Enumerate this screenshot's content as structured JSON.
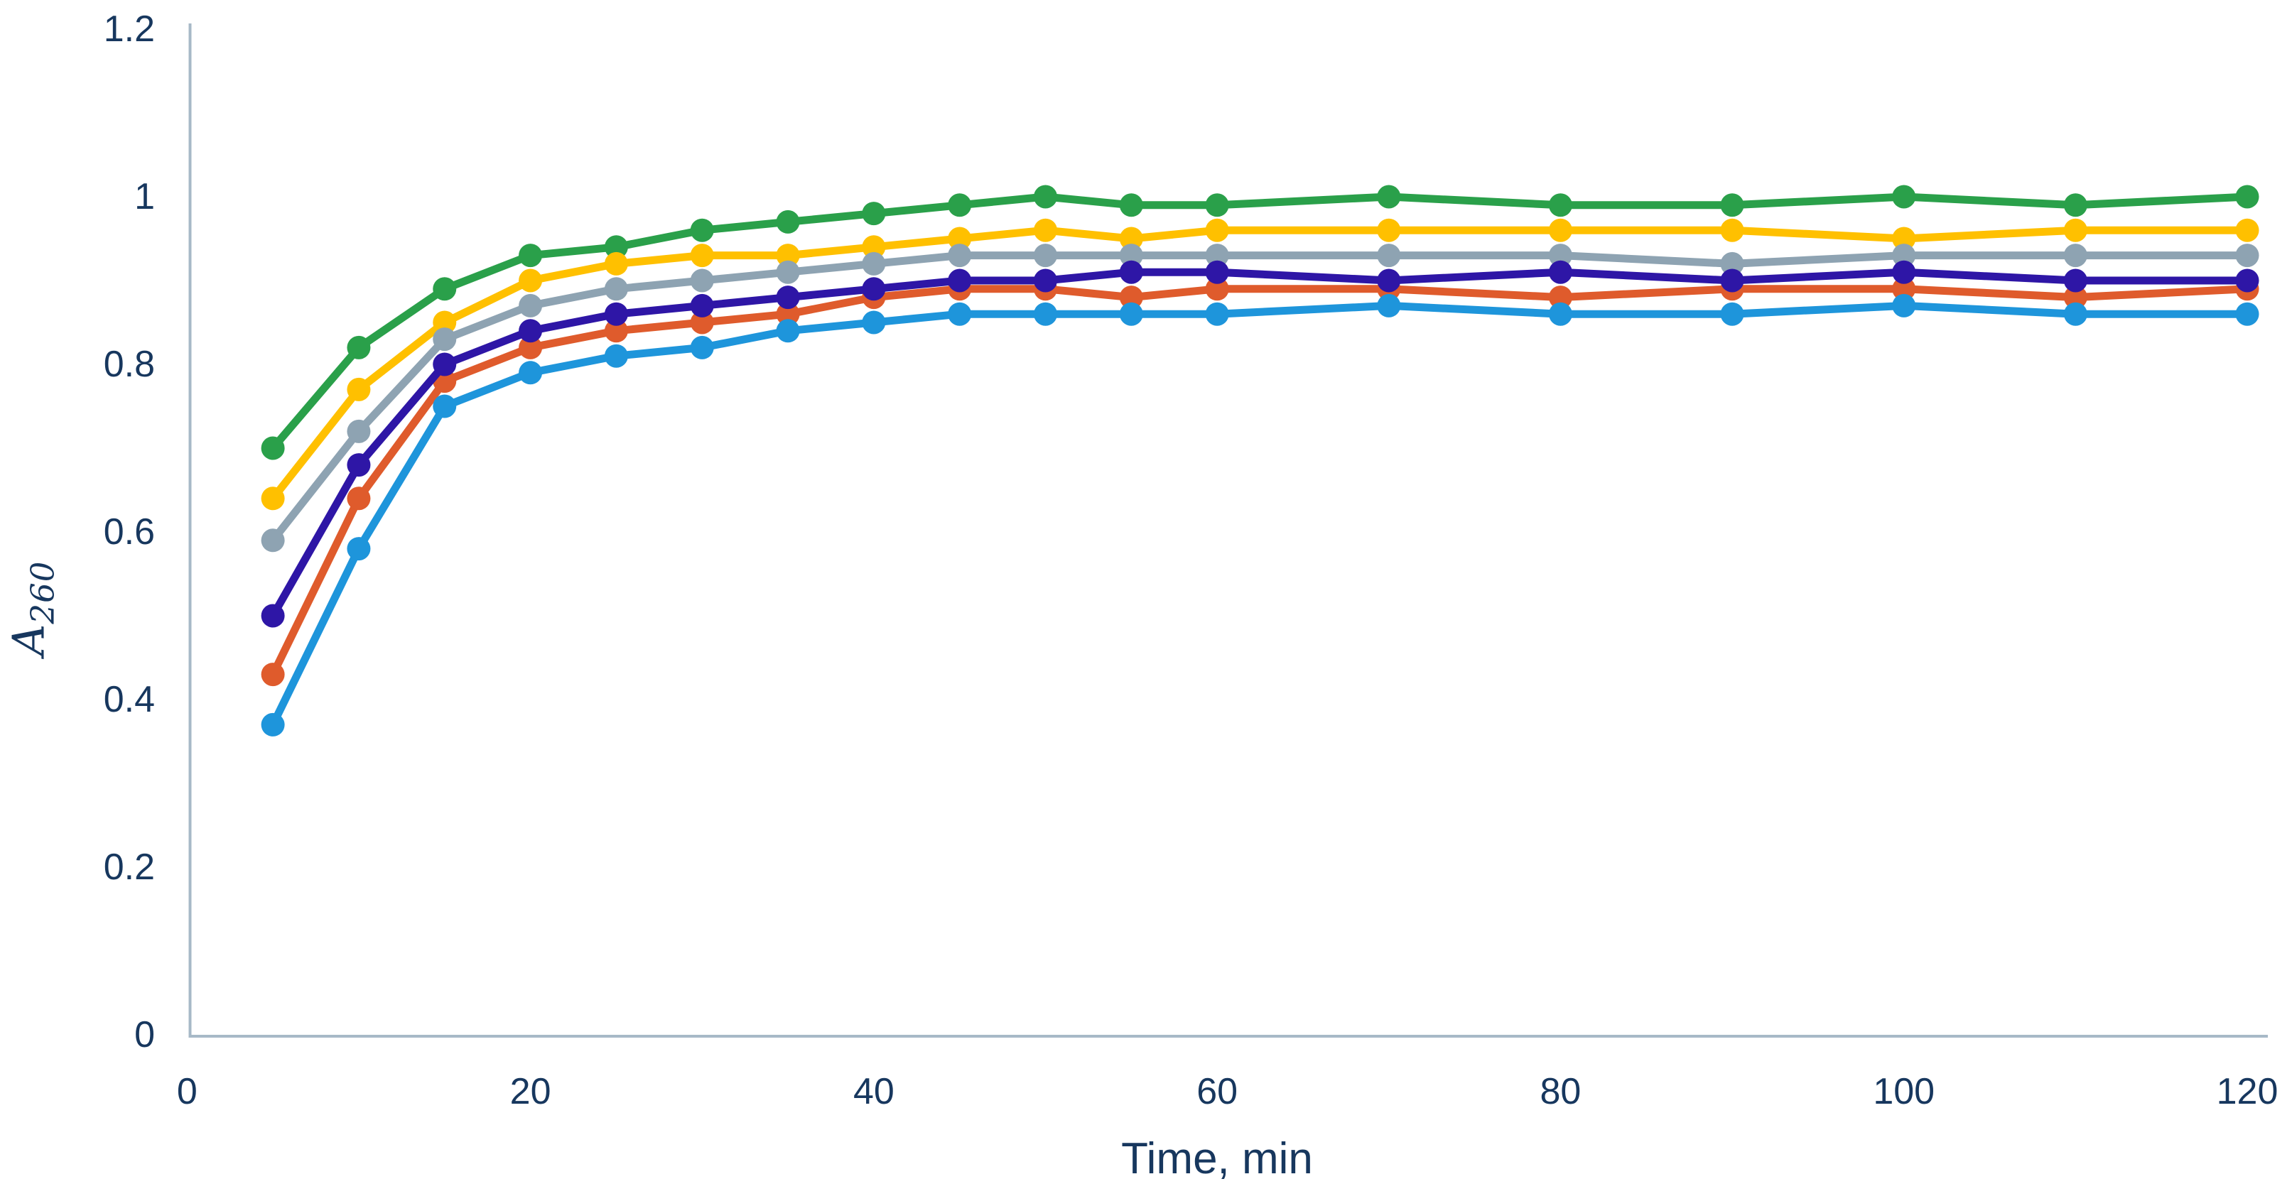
{
  "chart_data": {
    "type": "line",
    "title": "",
    "xlabel": "Time, min",
    "ylabel_base": "A",
    "ylabel_sub": "260",
    "x": [
      5,
      10,
      15,
      20,
      25,
      30,
      35,
      40,
      45,
      50,
      55,
      60,
      70,
      80,
      90,
      100,
      110,
      120
    ],
    "x_ticks": [
      "0",
      "20",
      "40",
      "60",
      "80",
      "100",
      "120"
    ],
    "x_tick_values": [
      0,
      20,
      40,
      60,
      80,
      100,
      120
    ],
    "y_ticks": [
      "0",
      "0.2",
      "0.4",
      "0.6",
      "0.8",
      "1",
      "1.2"
    ],
    "y_tick_values": [
      0,
      0.2,
      0.4,
      0.6,
      0.8,
      1.0,
      1.2
    ],
    "xlim": [
      0,
      120
    ],
    "ylim": [
      0,
      1.2
    ],
    "grid": false,
    "legend": "none",
    "marker": "circle",
    "series": [
      {
        "name": "green",
        "color": "#2AA04A",
        "values": [
          0.7,
          0.82,
          0.89,
          0.93,
          0.94,
          0.96,
          0.97,
          0.98,
          0.99,
          1.0,
          0.99,
          0.99,
          1.0,
          0.99,
          0.99,
          1.0,
          0.99,
          1.0
        ]
      },
      {
        "name": "gold",
        "color": "#FFC000",
        "values": [
          0.64,
          0.77,
          0.85,
          0.9,
          0.92,
          0.93,
          0.93,
          0.94,
          0.95,
          0.96,
          0.95,
          0.96,
          0.96,
          0.96,
          0.96,
          0.95,
          0.96,
          0.96
        ]
      },
      {
        "name": "gray",
        "color": "#8EA3B2",
        "values": [
          0.59,
          0.72,
          0.83,
          0.87,
          0.89,
          0.9,
          0.91,
          0.92,
          0.93,
          0.93,
          0.93,
          0.93,
          0.93,
          0.93,
          0.92,
          0.93,
          0.93,
          0.93
        ]
      },
      {
        "name": "orange-red",
        "color": "#DF5B2C",
        "values": [
          0.43,
          0.64,
          0.78,
          0.82,
          0.84,
          0.85,
          0.86,
          0.88,
          0.89,
          0.89,
          0.88,
          0.89,
          0.89,
          0.88,
          0.89,
          0.89,
          0.88,
          0.89
        ]
      },
      {
        "name": "navy",
        "color": "#2E16A6",
        "values": [
          0.5,
          0.68,
          0.8,
          0.84,
          0.86,
          0.87,
          0.88,
          0.89,
          0.9,
          0.9,
          0.91,
          0.91,
          0.9,
          0.91,
          0.9,
          0.91,
          0.9,
          0.9
        ]
      },
      {
        "name": "blue",
        "color": "#1E95DB",
        "values": [
          0.37,
          0.58,
          0.75,
          0.79,
          0.81,
          0.82,
          0.84,
          0.85,
          0.86,
          0.86,
          0.86,
          0.86,
          0.87,
          0.86,
          0.86,
          0.87,
          0.86,
          0.86
        ]
      }
    ],
    "axis_color": "#A7B9C7",
    "text_color": "#17375E"
  }
}
